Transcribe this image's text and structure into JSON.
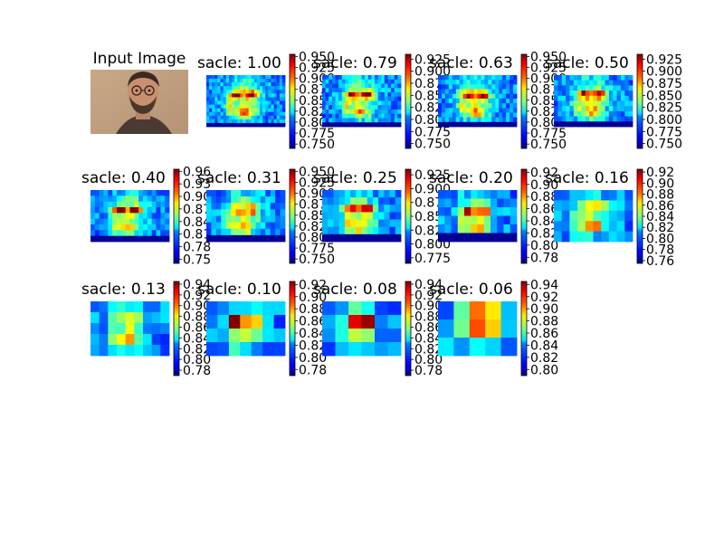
{
  "figure": {
    "input_title": "Input Image",
    "colormap": "jet"
  },
  "chart_data": {
    "type": "heatmap",
    "panels": [
      {
        "title": "sacle: 1.00",
        "ticks": [
          "0.950",
          "0.925",
          "0.900",
          "0.875",
          "0.850",
          "0.825",
          "0.800",
          "0.775",
          "0.750"
        ],
        "vmin": 0.74,
        "vmax": 0.955,
        "cols": 28,
        "rows": 14,
        "seed": 11
      },
      {
        "title": "sacle: 0.79",
        "ticks": [
          "0.925",
          "0.900",
          "0.875",
          "0.850",
          "0.825",
          "0.800",
          "0.775",
          "0.750"
        ],
        "vmin": 0.74,
        "vmax": 0.935,
        "cols": 24,
        "rows": 12,
        "seed": 22
      },
      {
        "title": "sacle: 0.63",
        "ticks": [
          "0.950",
          "0.925",
          "0.900",
          "0.875",
          "0.850",
          "0.825",
          "0.800",
          "0.775",
          "0.750"
        ],
        "vmin": 0.74,
        "vmax": 0.955,
        "cols": 22,
        "rows": 11,
        "seed": 33
      },
      {
        "title": "sacle: 0.50",
        "ticks": [
          "0.925",
          "0.900",
          "0.875",
          "0.850",
          "0.825",
          "0.800",
          "0.775",
          "0.750"
        ],
        "vmin": 0.74,
        "vmax": 0.935,
        "cols": 20,
        "rows": 10,
        "seed": 44
      },
      {
        "title": "sacle: 0.40",
        "ticks": [
          "0.96",
          "0.93",
          "0.90",
          "0.87",
          "0.84",
          "0.81",
          "0.78",
          "0.75"
        ],
        "vmin": 0.74,
        "vmax": 0.965,
        "cols": 18,
        "rows": 9,
        "seed": 55
      },
      {
        "title": "sacle: 0.31",
        "ticks": [
          "0.950",
          "0.925",
          "0.900",
          "0.875",
          "0.850",
          "0.825",
          "0.800",
          "0.775",
          "0.750"
        ],
        "vmin": 0.74,
        "vmax": 0.955,
        "cols": 16,
        "rows": 8,
        "seed": 66
      },
      {
        "title": "sacle: 0.25",
        "ticks": [
          "0.925",
          "0.900",
          "0.875",
          "0.850",
          "0.825",
          "0.800",
          "0.775"
        ],
        "vmin": 0.765,
        "vmax": 0.935,
        "cols": 14,
        "rows": 7,
        "seed": 77
      },
      {
        "title": "sacle: 0.20",
        "ticks": [
          "0.92",
          "0.90",
          "0.88",
          "0.86",
          "0.84",
          "0.82",
          "0.80",
          "0.78"
        ],
        "vmin": 0.77,
        "vmax": 0.925,
        "cols": 12,
        "rows": 6,
        "seed": 88
      },
      {
        "title": "sacle: 0.16",
        "ticks": [
          "0.92",
          "0.90",
          "0.88",
          "0.86",
          "0.84",
          "0.82",
          "0.80",
          "0.78",
          "0.76"
        ],
        "vmin": 0.755,
        "vmax": 0.925,
        "cols": 10,
        "rows": 5,
        "seed": 99
      },
      {
        "title": "sacle: 0.13",
        "ticks": [
          "0.94",
          "0.92",
          "0.90",
          "0.88",
          "0.86",
          "0.84",
          "0.82",
          "0.80",
          "0.78"
        ],
        "vmin": 0.77,
        "vmax": 0.945,
        "cols": 9,
        "rows": 5,
        "seed": 111
      },
      {
        "title": "sacle: 0.10",
        "ticks": [
          "0.92",
          "0.90",
          "0.88",
          "0.86",
          "0.84",
          "0.82",
          "0.80",
          "0.78"
        ],
        "vmin": 0.77,
        "vmax": 0.925,
        "cols": 7,
        "rows": 4,
        "seed": 122
      },
      {
        "title": "sacle: 0.08",
        "ticks": [
          "0.94",
          "0.92",
          "0.90",
          "0.88",
          "0.86",
          "0.84",
          "0.82",
          "0.80",
          "0.78"
        ],
        "vmin": 0.77,
        "vmax": 0.945,
        "cols": 6,
        "rows": 4,
        "seed": 133
      },
      {
        "title": "sacle: 0.06",
        "ticks": [
          "0.94",
          "0.92",
          "0.90",
          "0.88",
          "0.86",
          "0.84",
          "0.82",
          "0.80"
        ],
        "vmin": 0.79,
        "vmax": 0.945,
        "cols": 5,
        "rows": 3,
        "seed": 144,
        "smooth": true
      }
    ]
  }
}
